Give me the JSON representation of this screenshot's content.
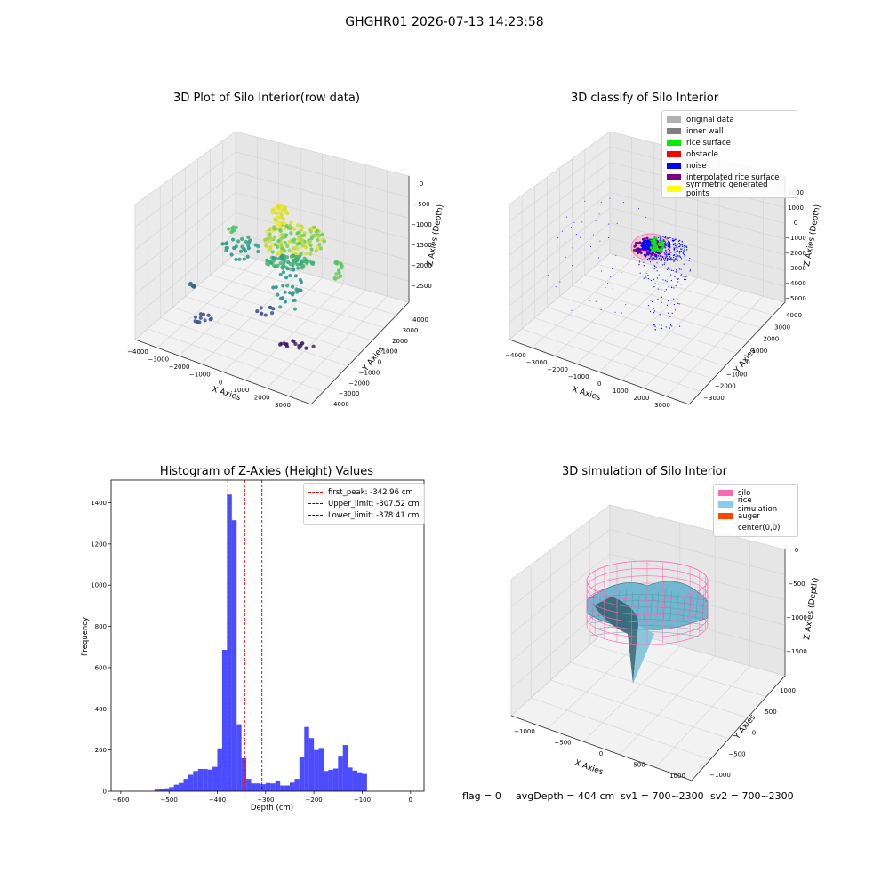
{
  "suptitle": "GHGHR01 2026-07-13 14:23:58",
  "panels": {
    "raw": {
      "title": "3D Plot of Silo Interior(row data)",
      "xlabel": "X Axies",
      "ylabel": "Y Axies",
      "zlabel": "Z Axies (Depth)",
      "xticks": [
        "−4000",
        "−3000",
        "−2000",
        "−1000",
        "0",
        "1000",
        "2000",
        "3000"
      ],
      "yticks": [
        "−4000",
        "−3000",
        "−2000",
        "−1000",
        "0",
        "1000",
        "2000",
        "3000",
        "4000"
      ],
      "zticks": [
        "0",
        "−500",
        "−1000",
        "−1500",
        "−2000",
        "−2500"
      ]
    },
    "classify": {
      "title": "3D classify of Silo Interior",
      "xlabel": "X Axies",
      "ylabel": "Y Axies",
      "zlabel": "Z Axies (Depth)",
      "xticks": [
        "−4000",
        "−3000",
        "−2000",
        "−1000",
        "0",
        "1000",
        "2000",
        "3000"
      ],
      "yticks": [
        "−3000",
        "−2000",
        "−1000",
        "0",
        "1000",
        "2000",
        "3000",
        "4000"
      ],
      "zticks": [
        "2000",
        "1000",
        "0",
        "−1000",
        "−2000",
        "−3000",
        "−4000",
        "−5000"
      ],
      "legend": [
        {
          "label": "original data",
          "color": "#b0b0b0"
        },
        {
          "label": "inner wall",
          "color": "#808080"
        },
        {
          "label": "rice surface",
          "color": "#00ee00"
        },
        {
          "label": "obstacle",
          "color": "#ff0000"
        },
        {
          "label": "noise",
          "color": "#0000ff"
        },
        {
          "label": "interpolated rice surface",
          "color": "#800080"
        },
        {
          "label": "symmetric generated points",
          "color": "#ffff00"
        }
      ]
    },
    "simulation": {
      "title": "3D simulation of Silo Interior",
      "xlabel": "X Axies",
      "ylabel": "Y Axies",
      "zlabel": "Z Axies (Depth)",
      "xticks": [
        "−1000",
        "−500",
        "0",
        "500",
        "1000"
      ],
      "yticks": [
        "−1000",
        "−500",
        "0",
        "500",
        "1000"
      ],
      "zticks": [
        "0",
        "−500",
        "−1000",
        "−1500"
      ],
      "legend": [
        {
          "label": "silo",
          "color": "#ff69b4"
        },
        {
          "label": "rice simulation",
          "color": "#87ceeb"
        },
        {
          "label": "auger",
          "color": "#ff4500"
        },
        {
          "label": "center(0,0)",
          "color": "#ffffff"
        }
      ]
    }
  },
  "status": {
    "flag": "flag = 0",
    "avg_depth": "avgDepth = 404 cm",
    "sv1": "sv1 = 700~2300",
    "sv2": "sv2 = 700~2300"
  },
  "chart_data": {
    "type": "bar",
    "title": "Histogram of Z-Axies (Height) Values",
    "xlabel": "Depth (cm)",
    "ylabel": "Frequency",
    "xlim": [
      -620,
      28
    ],
    "ylim": [
      0,
      1510
    ],
    "xticks": [
      -600,
      -500,
      -400,
      -300,
      -200,
      -100,
      0
    ],
    "yticks": [
      0,
      200,
      400,
      600,
      800,
      1000,
      1200,
      1400
    ],
    "bin_start": -530,
    "bin_width": 10,
    "values": [
      8,
      12,
      14,
      20,
      32,
      40,
      60,
      80,
      98,
      108,
      108,
      105,
      118,
      208,
      686,
      1440,
      1315,
      325,
      160,
      60,
      38,
      38,
      34,
      40,
      38,
      52,
      28,
      28,
      42,
      60,
      168,
      312,
      258,
      200,
      210,
      98,
      104,
      110,
      172,
      224,
      115,
      100,
      92,
      84
    ],
    "bar_color": "#0000ff",
    "reference_lines": [
      {
        "x": -342.96,
        "color": "#ff0000",
        "label": "first_peak: -342.96 cm"
      },
      {
        "x": -307.52,
        "color": "#0000ff",
        "label": "Upper_limit: -307.52 cm"
      },
      {
        "x": -378.41,
        "color": "#0000ff",
        "label": "Lower_limit: -378.41 cm"
      }
    ],
    "legend_position": "top-right",
    "grid": false
  }
}
